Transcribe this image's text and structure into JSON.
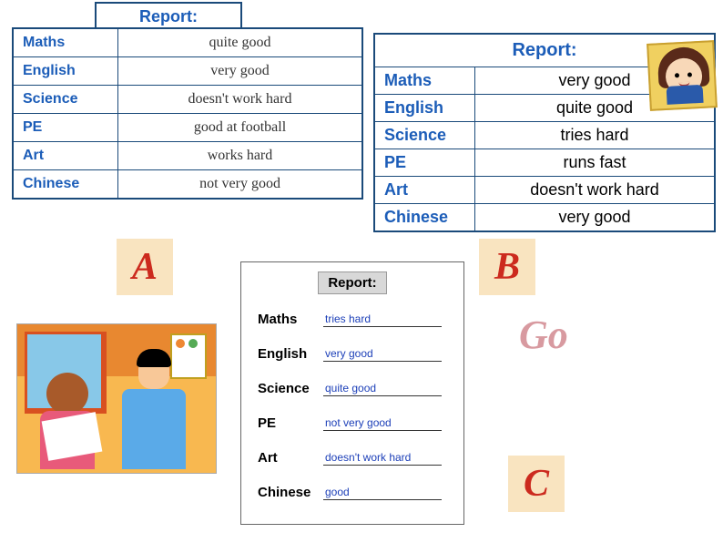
{
  "colors": {
    "table_border": "#1a4a7a",
    "heading_text": "#1c5db8",
    "letter_bg": "#f9e4c0",
    "letter_text": "#cc2a1e",
    "go_text": "#d89aa0",
    "card_value_text": "#1c3fb8"
  },
  "header_label": "Report:",
  "reportA": {
    "rows": [
      {
        "subject": "Maths",
        "value": "quite good"
      },
      {
        "subject": "English",
        "value": "very good"
      },
      {
        "subject": "Science",
        "value": "doesn't work hard"
      },
      {
        "subject": "PE",
        "value": "good at football"
      },
      {
        "subject": "Art",
        "value": "works hard"
      },
      {
        "subject": "Chinese",
        "value": "not very good"
      }
    ],
    "subject_width": 115,
    "font_size": 16,
    "value_color": "#333333",
    "value_font": "'Comic Sans MS', cursive"
  },
  "reportB": {
    "rows": [
      {
        "subject": "Maths",
        "value": "very good"
      },
      {
        "subject": "English",
        "value": "quite good"
      },
      {
        "subject": "Science",
        "value": "tries hard"
      },
      {
        "subject": "PE",
        "value": "runs fast"
      },
      {
        "subject": "Art",
        "value": "doesn't work hard"
      },
      {
        "subject": "Chinese",
        "value": "very good"
      }
    ],
    "subject_width": 110,
    "font_size": 18,
    "value_color": "#000000",
    "value_font": "Arial, sans-serif"
  },
  "reportC": {
    "rows": [
      {
        "subject": "Maths",
        "value": "tries hard"
      },
      {
        "subject": "English",
        "value": "very good"
      },
      {
        "subject": "Science",
        "value": "quite good"
      },
      {
        "subject": "PE",
        "value": "not very good"
      },
      {
        "subject": "Art",
        "value": "doesn't work hard"
      },
      {
        "subject": "Chinese",
        "value": "good"
      }
    ]
  },
  "letters": {
    "A": "A",
    "B": "B",
    "C": "C"
  },
  "go_label": "Go"
}
